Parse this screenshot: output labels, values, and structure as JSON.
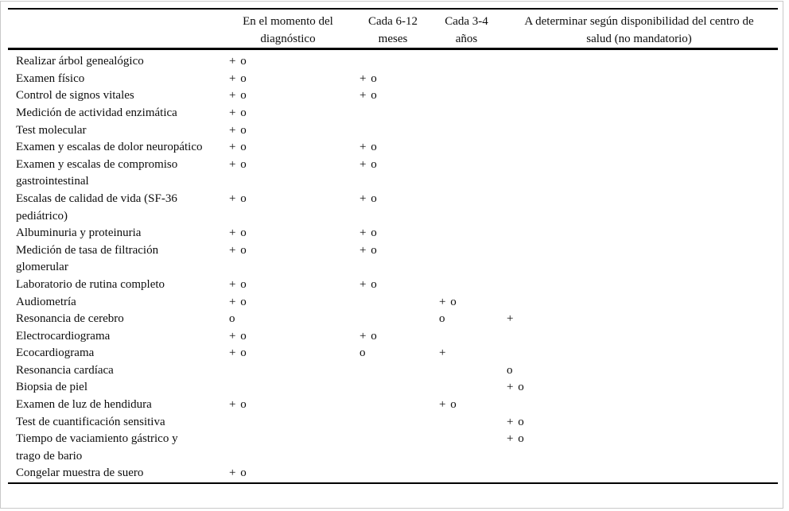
{
  "colors": {
    "background": "#ffffff",
    "text": "#0d0d0d",
    "table_rule": "#000000",
    "outer_frame": "#c9c9c9"
  },
  "table": {
    "header_columns": [
      {
        "line1": "",
        "line2": ""
      },
      {
        "line1": "En el momento del",
        "line2": "diagnóstico"
      },
      {
        "line1": "Cada 6-12",
        "line2": "meses"
      },
      {
        "line1": "Cada 3-4",
        "line2": "años"
      },
      {
        "line1": "A determinar según disponibilidad del centro de",
        "line2": "salud (no mandatorio)"
      }
    ],
    "rows": [
      {
        "label": "Realizar árbol genealógico",
        "cells": [
          "+ o",
          "",
          "",
          ""
        ]
      },
      {
        "label": "Examen físico",
        "cells": [
          "+ o",
          "+ o",
          "",
          ""
        ]
      },
      {
        "label": "Control de signos vitales",
        "cells": [
          "+ o",
          "+ o",
          "",
          ""
        ]
      },
      {
        "label": "Medición de actividad enzimática",
        "cells": [
          "+ o",
          "",
          "",
          ""
        ]
      },
      {
        "label": "Test molecular",
        "cells": [
          "+ o",
          "",
          "",
          ""
        ]
      },
      {
        "label": "Examen y escalas de dolor neuropático",
        "cells": [
          "+ o",
          "+ o",
          "",
          ""
        ]
      },
      {
        "label": "Examen y escalas de compromiso gastrointestinal",
        "cells": [
          "+ o",
          "+ o",
          "",
          ""
        ]
      },
      {
        "label": "Escalas de calidad de vida (SF-36 pediátrico)",
        "cells": [
          "+ o",
          "+ o",
          "",
          ""
        ]
      },
      {
        "label": "Albuminuria y proteinuria",
        "cells": [
          "+ o",
          "+ o",
          "",
          ""
        ]
      },
      {
        "label": "Medición de tasa de filtración glomerular",
        "cells": [
          "+ o",
          "+ o",
          "",
          ""
        ]
      },
      {
        "label": "Laboratorio de rutina completo",
        "cells": [
          "+ o",
          "+ o",
          "",
          ""
        ]
      },
      {
        "label": "Audiometría",
        "cells": [
          "+ o",
          "",
          "+ o",
          ""
        ]
      },
      {
        "label": "Resonancia de cerebro",
        "cells": [
          "o",
          "",
          "o",
          "+"
        ]
      },
      {
        "label": "Electrocardiograma",
        "cells": [
          "+ o",
          "+ o",
          "",
          ""
        ]
      },
      {
        "label": "Ecocardiograma",
        "cells": [
          "+ o",
          "o",
          "+",
          ""
        ]
      },
      {
        "label": "Resonancia cardíaca",
        "cells": [
          "",
          "",
          "",
          "o"
        ]
      },
      {
        "label": "Biopsia de piel",
        "cells": [
          "",
          "",
          "",
          "+ o"
        ]
      },
      {
        "label": "Examen de luz de hendidura",
        "cells": [
          "+ o",
          "",
          "+ o",
          ""
        ]
      },
      {
        "label": "Test de cuantificación sensitiva",
        "cells": [
          "",
          "",
          "",
          "+ o"
        ]
      },
      {
        "label": "Tiempo de vaciamiento gástrico y trago de bario",
        "cells": [
          "",
          "",
          "",
          "+ o"
        ]
      },
      {
        "label": "Congelar muestra de suero",
        "cells": [
          "+ o",
          "",
          "",
          ""
        ]
      }
    ]
  }
}
